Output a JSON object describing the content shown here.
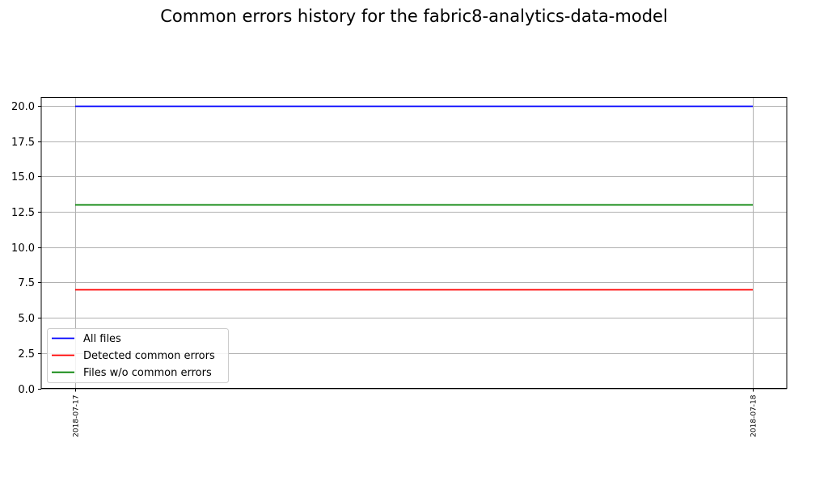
{
  "chart_data": {
    "type": "line",
    "title": "Common errors history for the fabric8-analytics-data-model",
    "xlabel": "",
    "ylabel": "",
    "x": [
      "2018-07-17",
      "2018-07-18"
    ],
    "series": [
      {
        "name": "All files",
        "color": "#0000ff",
        "values": [
          20,
          20
        ]
      },
      {
        "name": "Detected common errors",
        "color": "#ff0000",
        "values": [
          7,
          7
        ]
      },
      {
        "name": "Files w/o common errors",
        "color": "#008000",
        "values": [
          13,
          13
        ]
      }
    ],
    "ylim": [
      0,
      20.6
    ],
    "yticks": [
      "0.0",
      "2.5",
      "5.0",
      "7.5",
      "10.0",
      "12.5",
      "15.0",
      "17.5",
      "20.0"
    ],
    "grid": true,
    "legend_position": "lower-left",
    "grid_color": "#b0b0b0"
  }
}
